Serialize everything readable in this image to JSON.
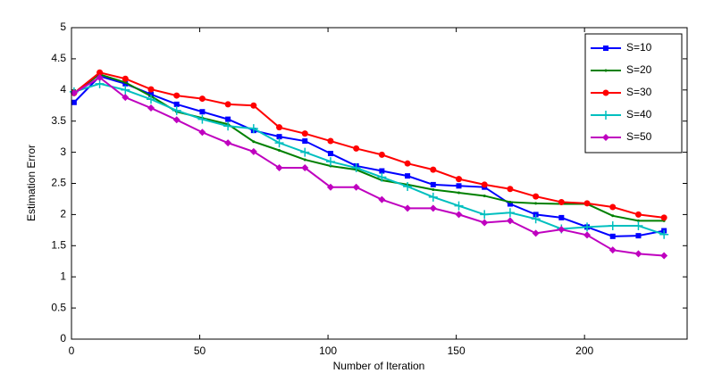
{
  "chart_data": {
    "type": "line",
    "x_label": "Number of Iteration",
    "y_label": "Estimation Error",
    "x": [
      1,
      11,
      21,
      31,
      41,
      51,
      61,
      71,
      81,
      91,
      101,
      111,
      121,
      131,
      141,
      151,
      161,
      171,
      181,
      191,
      201,
      211,
      221,
      231
    ],
    "series": [
      {
        "name": "S=10",
        "color": "#0000ff",
        "marker": "square",
        "values": [
          3.8,
          4.22,
          4.1,
          3.93,
          3.77,
          3.65,
          3.53,
          3.35,
          3.25,
          3.18,
          2.98,
          2.78,
          2.7,
          2.62,
          2.48,
          2.46,
          2.44,
          2.17,
          2.0,
          1.95,
          1.8,
          1.65,
          1.66,
          1.74
        ]
      },
      {
        "name": "S=20",
        "color": "#008000",
        "marker": "dot",
        "values": [
          3.95,
          4.25,
          4.12,
          3.9,
          3.65,
          3.55,
          3.45,
          3.17,
          3.03,
          2.88,
          2.78,
          2.72,
          2.55,
          2.48,
          2.4,
          2.35,
          2.3,
          2.2,
          2.18,
          2.17,
          2.17,
          1.98,
          1.9,
          1.9
        ]
      },
      {
        "name": "S=30",
        "color": "#ff0000",
        "marker": "circle",
        "values": [
          3.95,
          4.28,
          4.18,
          4.01,
          3.91,
          3.86,
          3.77,
          3.75,
          3.4,
          3.3,
          3.18,
          3.06,
          2.96,
          2.82,
          2.72,
          2.57,
          2.48,
          2.41,
          2.29,
          2.2,
          2.18,
          2.12,
          2.0,
          1.95
        ]
      },
      {
        "name": "S=40",
        "color": "#00bfbf",
        "marker": "plus",
        "values": [
          3.97,
          4.1,
          4.0,
          3.85,
          3.67,
          3.53,
          3.42,
          3.38,
          3.15,
          3.0,
          2.85,
          2.75,
          2.6,
          2.45,
          2.28,
          2.14,
          2.0,
          2.03,
          1.93,
          1.77,
          1.8,
          1.82,
          1.82,
          1.68
        ]
      },
      {
        "name": "S=50",
        "color": "#bf00bf",
        "marker": "diamond",
        "values": [
          3.95,
          4.2,
          3.88,
          3.71,
          3.52,
          3.32,
          3.15,
          3.01,
          2.75,
          2.75,
          2.44,
          2.44,
          2.24,
          2.1,
          2.1,
          2.0,
          1.87,
          1.9,
          1.7,
          1.76,
          1.67,
          1.43,
          1.37,
          1.34
        ]
      }
    ],
    "xlim": [
      0,
      240
    ],
    "xticks": [
      0,
      50,
      100,
      150,
      200
    ],
    "ylim": [
      0,
      5
    ],
    "yticks": [
      0,
      0.5,
      1,
      1.5,
      2,
      2.5,
      3,
      3.5,
      4,
      4.5,
      5
    ],
    "grid": false,
    "legend": "top-right"
  }
}
